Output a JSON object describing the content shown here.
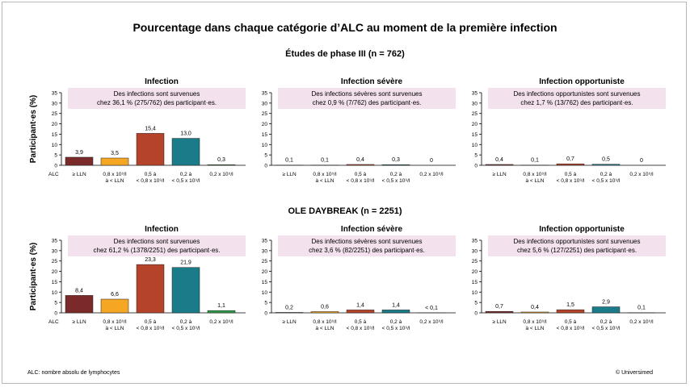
{
  "title": "Pourcentage dans chaque catégorie d’ALC au moment de la première infection",
  "footer_left": "ALC: nombre absolu de lymphocytes",
  "footer_right": "© Universimed",
  "y_axis_label": "Participant·es (%)",
  "x_axis_prefix": "ALC",
  "colors": [
    "#7b2a2a",
    "#f5a623",
    "#b5432a",
    "#197c88",
    "#2d9a45"
  ],
  "chart_data": {
    "type": "bar",
    "categories": [
      [
        "≥ LLN",
        ""
      ],
      [
        "0,8 x 10⁹/l",
        "à < LLN"
      ],
      [
        "0,5 à",
        "< 0,8 x 10⁹/l"
      ],
      [
        "0,2 à",
        "< 0,5 x 10⁹/l"
      ],
      [
        "0,2 x 10⁹/l",
        ""
      ]
    ],
    "ylim": [
      0,
      35
    ],
    "yticks": [
      0,
      5,
      10,
      15,
      20,
      25,
      30,
      35
    ],
    "sections": [
      {
        "title": "Études de phase III (n = 762)",
        "panels": [
          {
            "title": "Infection",
            "note": [
              "Des infections sont survenues",
              "chez 36,1 % (275/762) des participant·es."
            ],
            "values": [
              3.9,
              3.5,
              15.4,
              13.0,
              0.3
            ],
            "labels": [
              "3,9",
              "3,5",
              "15,4",
              "13,0",
              "0,3"
            ]
          },
          {
            "title": "Infection sévère",
            "note": [
              "Des infections sévères sont survenues",
              "chez 0,9 % (7/762) des participant·es."
            ],
            "values": [
              0.1,
              0.1,
              0.4,
              0.3,
              0
            ],
            "labels": [
              "0,1",
              "0,1",
              "0,4",
              "0,3",
              "0"
            ]
          },
          {
            "title": "Infection opportuniste",
            "note": [
              "Des infections opportunistes sont survenues",
              "chez 1,7 % (13/762) des participant·es."
            ],
            "values": [
              0.4,
              0.1,
              0.7,
              0.5,
              0
            ],
            "labels": [
              "0,4",
              "0,1",
              "0,7",
              "0,5",
              "0"
            ]
          }
        ]
      },
      {
        "title": "OLE DAYBREAK (n = 2251)",
        "panels": [
          {
            "title": "Infection",
            "note": [
              "Des infections sont survenues",
              "chez 61,2 % (1378/2251) des participant·es."
            ],
            "values": [
              8.4,
              6.6,
              23.3,
              21.9,
              1.1
            ],
            "labels": [
              "8,4",
              "6,6",
              "23,3",
              "21,9",
              "1,1"
            ]
          },
          {
            "title": "Infection sévère",
            "note": [
              "Des infections sévères sont survenues",
              "chez 3,6 % (82/2251) des participant·es."
            ],
            "values": [
              0.2,
              0.6,
              1.4,
              1.4,
              0.05
            ],
            "labels": [
              "0,2",
              "0,6",
              "1,4",
              "1,4",
              "< 0,1"
            ]
          },
          {
            "title": "Infection opportuniste",
            "note": [
              "Des infections opportunistes sont survenues",
              "chez 5,6 % (127/2251) des participant·es."
            ],
            "values": [
              0.7,
              0.4,
              1.5,
              2.9,
              0.1
            ],
            "labels": [
              "0,7",
              "0,4",
              "1,5",
              "2,9",
              "0,1"
            ]
          }
        ]
      }
    ]
  }
}
